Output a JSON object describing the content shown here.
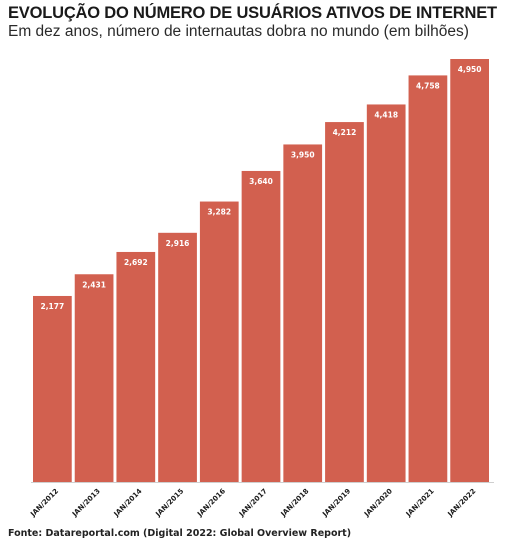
{
  "title": "EVOLUÇÃO DO NÚMERO DE USUÁRIOS ATIVOS DE INTERNET",
  "subtitle": "Em dez anos, número de internautas dobra no mundo (em bilhões)",
  "source": "Fonte: Datareportal.com (Digital 2022: Global Overview Report)",
  "colors": {
    "bar": "#d2604f",
    "axis": "#cfcfcf"
  },
  "chart_data": {
    "type": "bar",
    "categories": [
      "JAN/2012",
      "JAN/2013",
      "JAN/2014",
      "JAN/2015",
      "JAN/2016",
      "JAN/2017",
      "JAN/2018",
      "JAN/2019",
      "JAN/2020",
      "JAN/2021",
      "JAN/2022"
    ],
    "values": [
      2.177,
      2.431,
      2.692,
      2.916,
      3.282,
      3.64,
      3.95,
      4.212,
      4.418,
      4.758,
      4.95
    ],
    "value_labels": [
      "2,177",
      "2,431",
      "2,692",
      "2,916",
      "3,282",
      "3,640",
      "3,950",
      "4,212",
      "4,418",
      "4,758",
      "4,950"
    ],
    "title": "EVOLUÇÃO DO NÚMERO DE USUÁRIOS ATIVOS DE INTERNET",
    "xlabel": "",
    "ylabel": "",
    "ylim": [
      0,
      4.95
    ],
    "grid": false,
    "legend": "none"
  }
}
